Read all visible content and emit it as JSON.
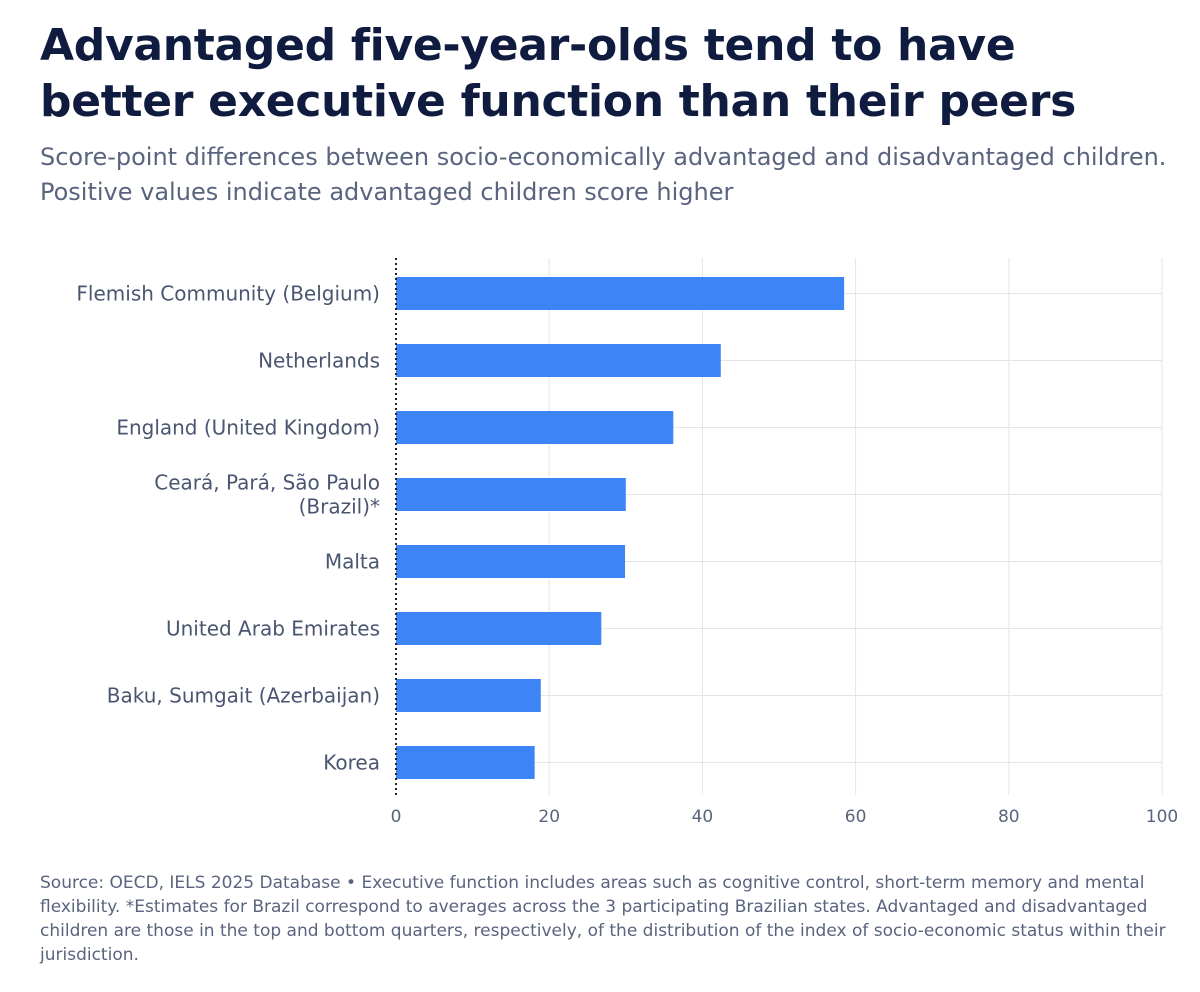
{
  "title": "Advantaged five-year-olds tend to have better executive function than their peers",
  "subtitle": "Score-point differences between socio-economically advantaged and disadvantaged children. Positive values indicate advantaged children score higher",
  "footer": "Source: OECD, IELS 2025 Database • Executive function includes areas such as cognitive control, short-term memory and mental flexibility. *Estimates for Brazil correspond to averages across the 3 participating Brazilian states. Advantaged and disadvantaged children are those in the top and bottom quarters, respectively, of the distribution of the index of socio-economic status within their jurisdiction.",
  "colors": {
    "bar": "#3d85f7",
    "grid": "#e3e5ea",
    "zero_line": "#222222"
  },
  "chart_data": {
    "type": "bar",
    "orientation": "horizontal",
    "categories": [
      [
        "Flemish Community (Belgium)"
      ],
      [
        "Netherlands"
      ],
      [
        "England (United Kingdom)"
      ],
      [
        "Ceará, Pará, São Paulo",
        "(Brazil)*"
      ],
      [
        "Malta"
      ],
      [
        "United Arab Emirates"
      ],
      [
        "Baku, Sumgait (Azerbaijan)"
      ],
      [
        "Korea"
      ]
    ],
    "values": [
      58.5,
      42.4,
      36.2,
      30.0,
      29.9,
      26.8,
      18.9,
      18.1
    ],
    "xlim": [
      0,
      100
    ],
    "xticks": [
      0,
      20,
      40,
      60,
      80,
      100
    ],
    "grid": true,
    "zero_line": "dotted"
  }
}
